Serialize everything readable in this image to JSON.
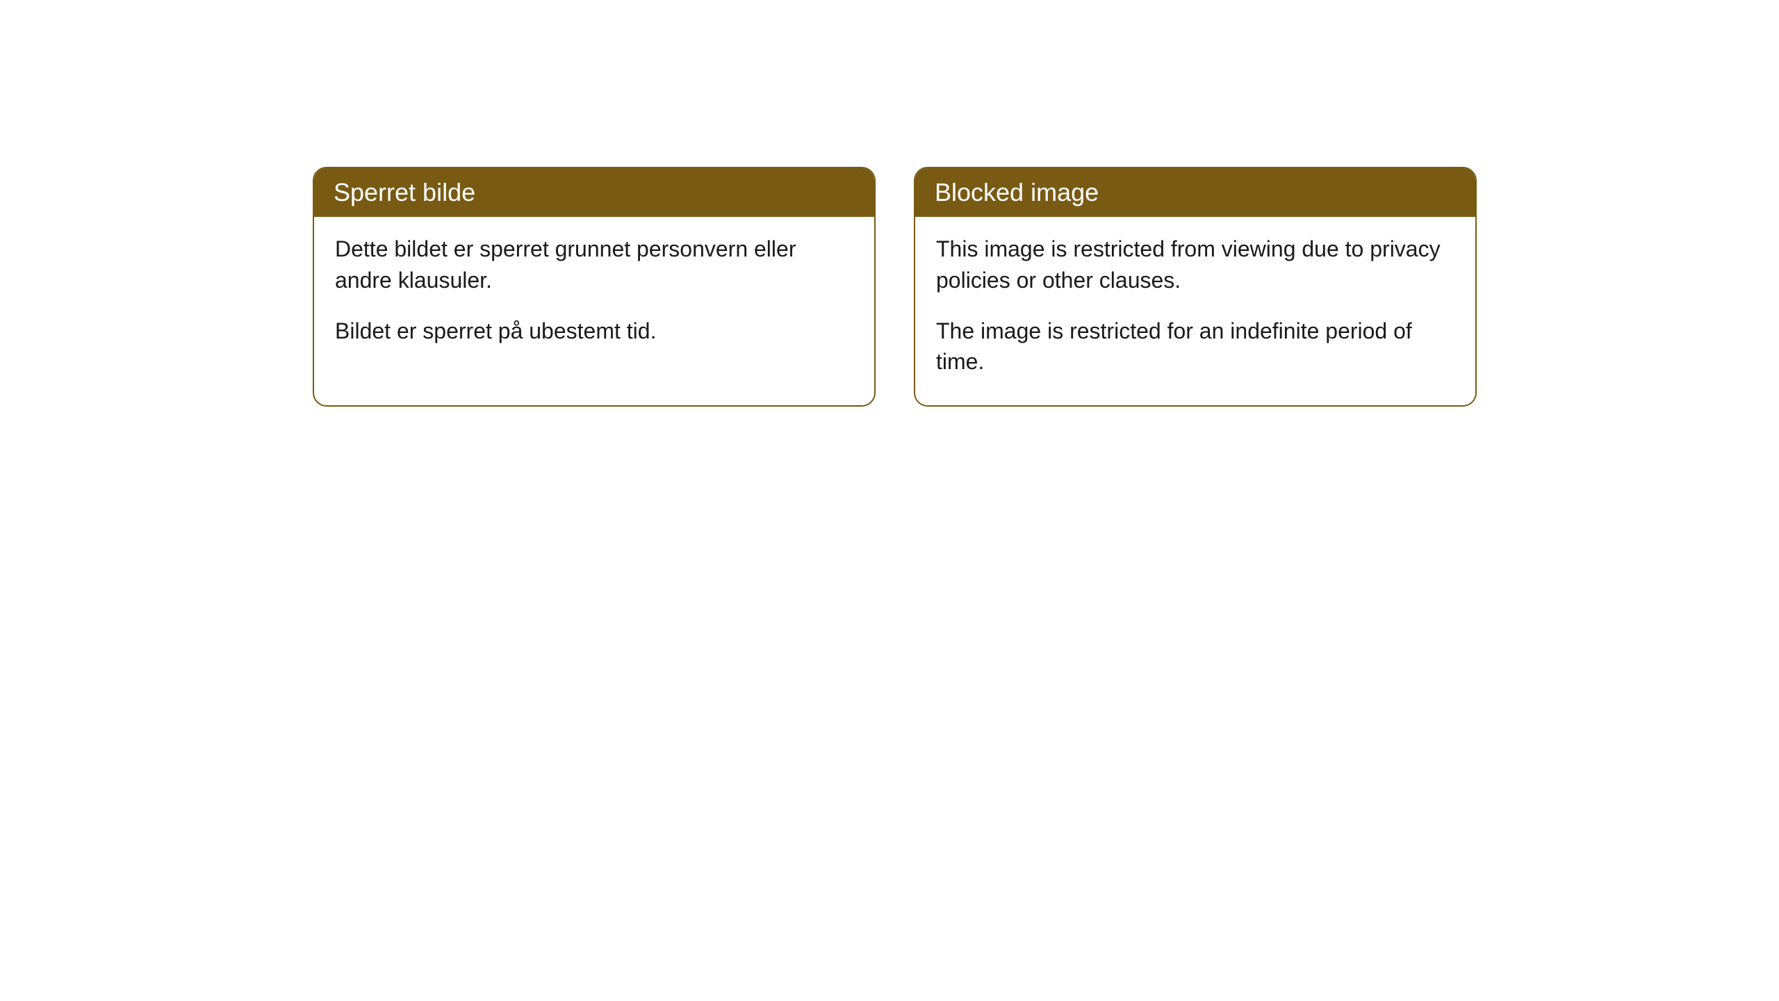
{
  "cards": [
    {
      "title": "Sperret bilde",
      "paragraph1": "Dette bildet er sperret grunnet personvern eller andre klausuler.",
      "paragraph2": "Bildet er sperret på ubestemt tid."
    },
    {
      "title": "Blocked image",
      "paragraph1": "This image is restricted from viewing due to privacy policies or other clauses.",
      "paragraph2": "The image is restricted for an indefinite period of time."
    }
  ],
  "styling": {
    "header_bg_color": "#785a13",
    "header_text_color": "#ffffff",
    "border_color": "#785a13",
    "body_bg_color": "#ffffff",
    "body_text_color": "#1a1a1a",
    "border_radius": 20,
    "header_fontsize": 36,
    "body_fontsize": 32
  }
}
